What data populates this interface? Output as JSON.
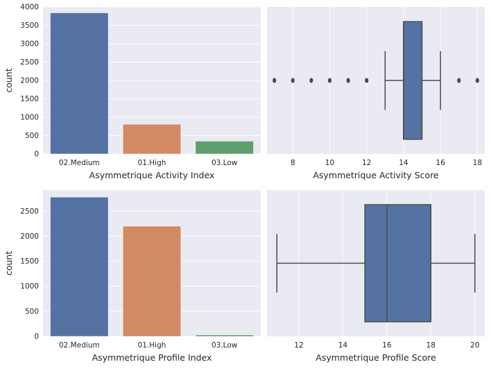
{
  "chart_data": [
    {
      "id": "activity-index",
      "type": "bar",
      "categories": [
        "02.Medium",
        "01.High",
        "03.Low"
      ],
      "values": [
        3840,
        810,
        350
      ],
      "colors": [
        "#5572a4",
        "#d28a63",
        "#5f9e6e"
      ],
      "xlabel": "Asymmetrique Activity Index",
      "ylabel": "count",
      "ylim": [
        0,
        4000
      ],
      "yticks": [
        0,
        500,
        1000,
        1500,
        2000,
        2500,
        3000,
        3500,
        4000
      ],
      "grid": true
    },
    {
      "id": "activity-score",
      "type": "boxplot",
      "xlabel": "Asymmetrique Activity Score",
      "xlim": [
        6.6,
        18.4
      ],
      "xticks": [
        8,
        10,
        12,
        14,
        16,
        18
      ],
      "box": {
        "whisker_low": 13,
        "q1": 14,
        "median": 14,
        "q3": 15,
        "whisker_high": 16
      },
      "outliers": [
        7,
        8,
        9,
        10,
        11,
        12,
        17,
        18
      ],
      "color": "#5572a4",
      "grid": true
    },
    {
      "id": "profile-index",
      "type": "bar",
      "categories": [
        "02.Medium",
        "01.High",
        "03.Low"
      ],
      "values": [
        2780,
        2200,
        30
      ],
      "colors": [
        "#5572a4",
        "#d28a63",
        "#5f9e6e"
      ],
      "xlabel": "Asymmetrique Profile Index",
      "ylabel": "count",
      "ylim": [
        0,
        2920
      ],
      "yticks": [
        0,
        500,
        1000,
        1500,
        2000,
        2500
      ],
      "grid": true
    },
    {
      "id": "profile-score",
      "type": "boxplot",
      "xlabel": "Asymmetrique Profile Score",
      "xlim": [
        10.55,
        20.45
      ],
      "xticks": [
        12,
        14,
        16,
        18,
        20
      ],
      "box": {
        "whisker_low": 11,
        "q1": 15,
        "median": 16,
        "q3": 18,
        "whisker_high": 20
      },
      "outliers": [],
      "color": "#5572a4",
      "grid": true
    }
  ]
}
